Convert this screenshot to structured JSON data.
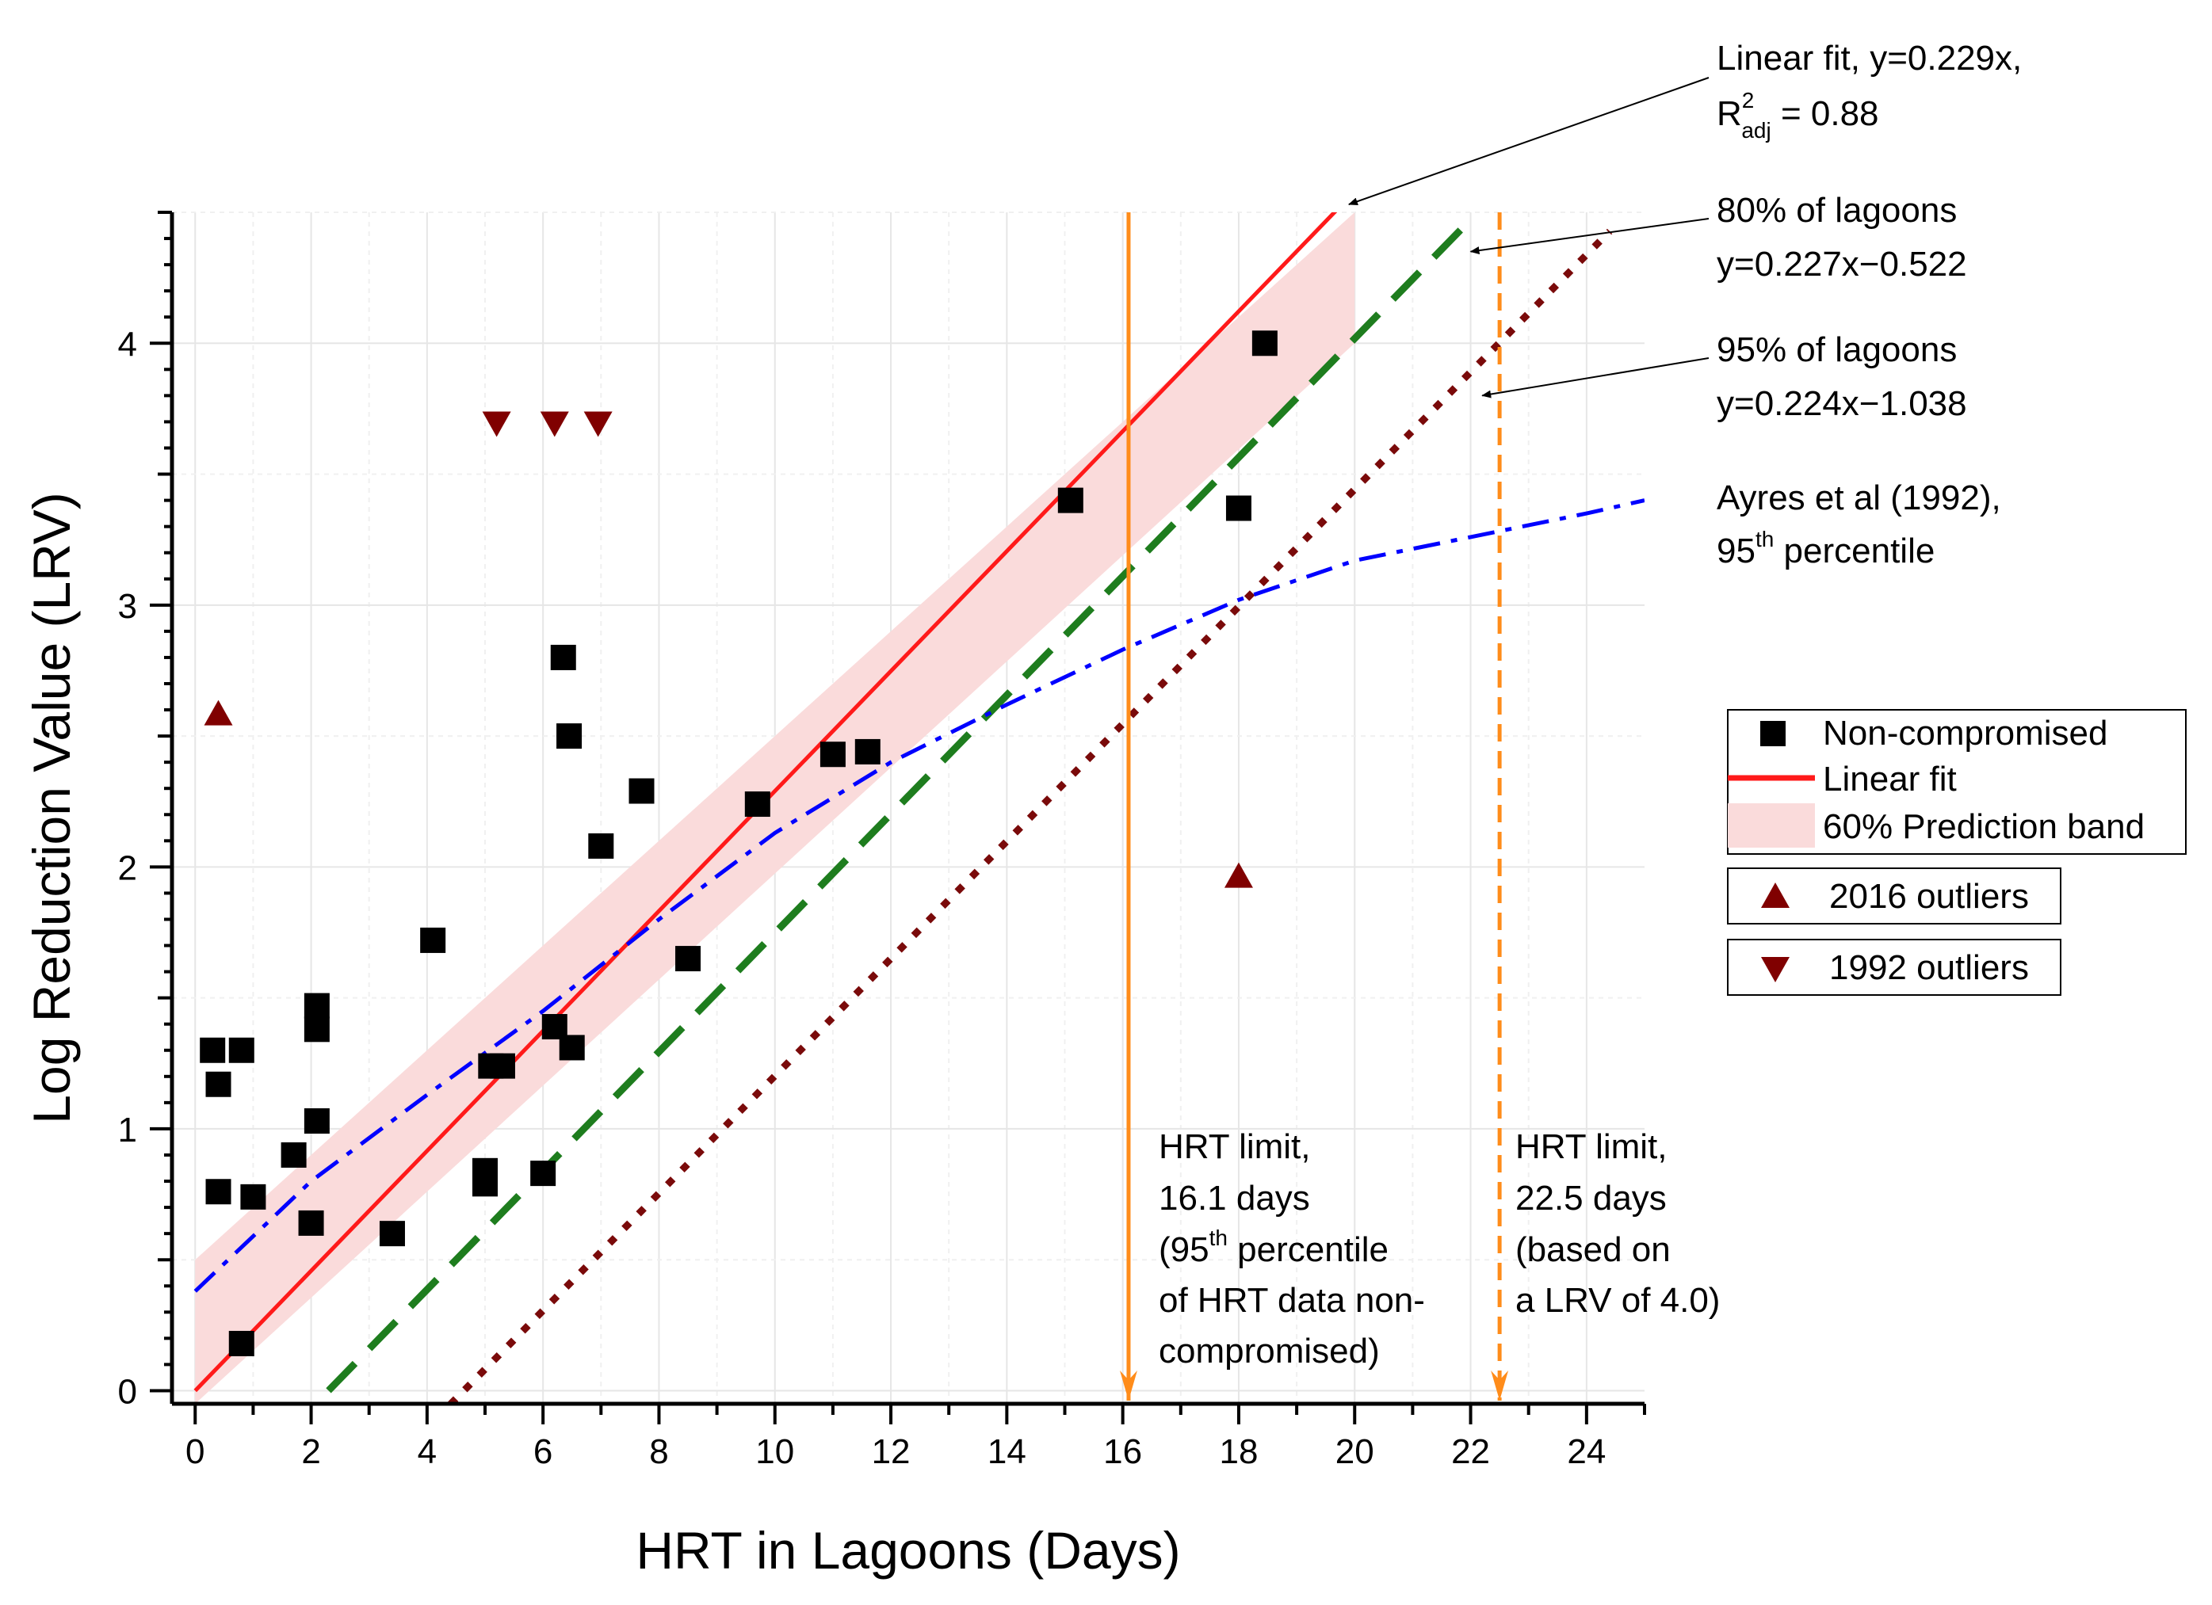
{
  "chart_data": {
    "type": "scatter",
    "xlabel": "HRT in Lagoons (Days)",
    "ylabel": "Log Reduction Value (LRV)",
    "xlim": [
      -0.4,
      25
    ],
    "ylim": [
      -0.05,
      4.5
    ],
    "xticks": [
      "0",
      "2",
      "4",
      "6",
      "8",
      "10",
      "12",
      "14",
      "16",
      "18",
      "20",
      "22",
      "24"
    ],
    "yticks": [
      "0",
      "1",
      "2",
      "3",
      "4"
    ],
    "grid": true,
    "series": [
      {
        "name": "Non-compromised",
        "kind": "scatter",
        "marker": "square",
        "color": "#000000",
        "x": [
          0.3,
          0.4,
          0.4,
          0.8,
          0.8,
          1.0,
          1.7,
          2.0,
          2.1,
          2.1,
          2.1,
          3.4,
          4.1,
          5.0,
          5.0,
          5.1,
          5.3,
          6.0,
          6.2,
          6.35,
          6.45,
          6.5,
          7.0,
          7.7,
          8.5,
          9.7,
          11.0,
          11.6,
          15.1,
          18.0,
          18.45
        ],
        "y": [
          1.3,
          1.17,
          0.76,
          1.3,
          0.18,
          0.74,
          0.9,
          0.64,
          1.03,
          1.38,
          1.47,
          0.6,
          1.72,
          0.79,
          0.84,
          1.24,
          1.24,
          0.83,
          1.39,
          2.8,
          2.5,
          1.31,
          2.08,
          2.29,
          1.65,
          2.24,
          2.43,
          2.44,
          3.4,
          3.37,
          4.0
        ]
      },
      {
        "name": "Linear fit",
        "kind": "line",
        "color": "#ff1a1a",
        "slope": 0.229,
        "intercept": 0,
        "x_range": [
          0,
          19.7
        ]
      },
      {
        "name": "60% Prediction band",
        "kind": "band",
        "color": "#fadbdb",
        "x": [
          0,
          20
        ],
        "upper": [
          0.5,
          4.5
        ],
        "lower": [
          -0.05,
          4.0
        ]
      },
      {
        "name": "2016 outliers",
        "kind": "scatter",
        "marker": "triangle-up",
        "color": "#800000",
        "x": [
          0.4,
          18.0
        ],
        "y": [
          2.58,
          1.96
        ]
      },
      {
        "name": "1992 outliers",
        "kind": "scatter",
        "marker": "triangle-down",
        "color": "#800000",
        "x": [
          5.2,
          6.2,
          6.95
        ],
        "y": [
          3.7,
          3.7,
          3.7
        ]
      },
      {
        "name": "80% of lagoons",
        "kind": "line",
        "style": "dashed",
        "color": "#1e7d1e",
        "slope": 0.227,
        "intercept": -0.522,
        "x_range": [
          2.3,
          21.9
        ]
      },
      {
        "name": "95% of lagoons",
        "kind": "line",
        "style": "dotted",
        "color": "#7a0a0a",
        "slope": 0.224,
        "intercept": -1.038,
        "x_range": [
          4.4,
          24.4
        ]
      },
      {
        "name": "Ayres et al (1992), 95th percentile",
        "kind": "line",
        "style": "dashdot",
        "color": "#0000ff",
        "x": [
          0,
          2,
          4,
          6,
          8,
          10,
          12,
          14,
          16,
          18,
          20,
          22,
          24,
          25
        ],
        "y": [
          0.38,
          0.8,
          1.13,
          1.45,
          1.8,
          2.13,
          2.4,
          2.62,
          2.83,
          3.02,
          3.17,
          3.26,
          3.35,
          3.4
        ]
      },
      {
        "name": "HRT limit 16.1 days",
        "kind": "vline",
        "style": "solid",
        "color": "#ff8c1a",
        "x": 16.1
      },
      {
        "name": "HRT limit 22.5 days",
        "kind": "vline",
        "style": "dashed",
        "color": "#ff8c1a",
        "x": 22.5
      }
    ],
    "annotations": {
      "linear_fit": {
        "line1": "Linear fit, y=0.229x,",
        "r": "R",
        "r_sup": "2",
        "r_sub": "adj",
        "r_rest": " = 0.88",
        "arrow_to": {
          "x": 19.9,
          "y": 4.5
        }
      },
      "lagoons80": {
        "line1": "80% of lagoons",
        "line2": "y=0.227x−0.522",
        "arrow_to": {
          "x": 22.0,
          "y": 4.35
        }
      },
      "lagoons95": {
        "line1": "95% of lagoons",
        "line2": "y=0.224x−1.038",
        "arrow_to": {
          "x": 22.2,
          "y": 3.8
        }
      },
      "ayres": {
        "line1": "Ayres et al (1992),",
        "line2_pre": "95",
        "line2_sup": "th",
        "line2_post": " percentile"
      },
      "hrt16": {
        "line1": "HRT limit,",
        "line2": "16.1 days",
        "line3_pre": "(95",
        "line3_sup": "th",
        "line3_post": " percentile",
        "line4": "of HRT data non-",
        "line5": "compromised)"
      },
      "hrt22": {
        "line1": "HRT limit,",
        "line2": "22.5 days",
        "line3": "(based on",
        "line4": "a LRV of 4.0)"
      }
    },
    "legend": {
      "placement": "right",
      "groups": [
        [
          "Non-compromised",
          "Linear fit",
          "60% Prediction band"
        ],
        [
          "2016 outliers"
        ],
        [
          "1992 outliers"
        ]
      ]
    }
  }
}
